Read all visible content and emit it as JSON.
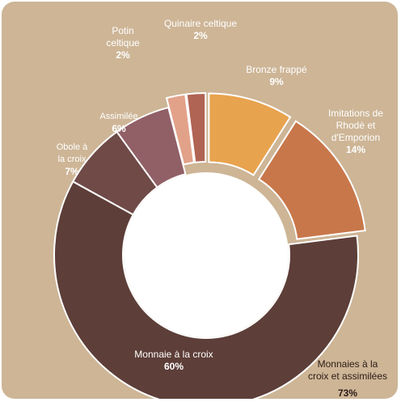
{
  "chart_data": {
    "type": "donut",
    "title": "",
    "slices": [
      {
        "label": "Bronze frappé",
        "percent_label": "9%",
        "value": 9,
        "color": "#e8a34f",
        "exploded": true
      },
      {
        "label": "Imitations de Rhodè et d'Emporion",
        "percent_label": "14%",
        "value": 14,
        "color": "#c8774a",
        "exploded": true
      },
      {
        "label": "Monnaie à la croix",
        "percent_label": "60%",
        "value": 60,
        "color": "#5d3e38",
        "exploded": false
      },
      {
        "label": "Obole à la croix",
        "percent_label": "7%",
        "value": 7,
        "color": "#6f4a47",
        "exploded": false
      },
      {
        "label": "Assimilée",
        "percent_label": "6%",
        "value": 6,
        "color": "#906066",
        "exploded": false
      },
      {
        "label": "Potin celtique",
        "percent_label": "2%",
        "value": 2,
        "color": "#e2a289",
        "exploded": true
      },
      {
        "label": "Quinaire celtique",
        "percent_label": "2%",
        "value": 2,
        "color": "#b06454",
        "exploded": true
      }
    ],
    "group_annotation": {
      "label": "Monnaies à la croix et assimilées",
      "percent_label": "73%"
    },
    "background_color": "#cdb596"
  },
  "labels": {
    "bronze": {
      "text": "Bronze frappé",
      "pct": "9%"
    },
    "imitations": {
      "text": "Imitations de\nRhodè et\nd'Emporion",
      "pct": "14%"
    },
    "monnaie": {
      "text": "Monnaie à la croix",
      "pct": "60%"
    },
    "obole": {
      "text": "Obole à\nla croix",
      "pct": "7%"
    },
    "assimilee": {
      "text": "Assimilée",
      "pct": "6%"
    },
    "potin": {
      "text": "Potin\nceltique",
      "pct": "2%"
    },
    "quinaire": {
      "text": "Quinaire celtique",
      "pct": "2%"
    },
    "group": {
      "text": "Monnaies à la\ncroix et assimilées",
      "pct": "73%"
    }
  }
}
